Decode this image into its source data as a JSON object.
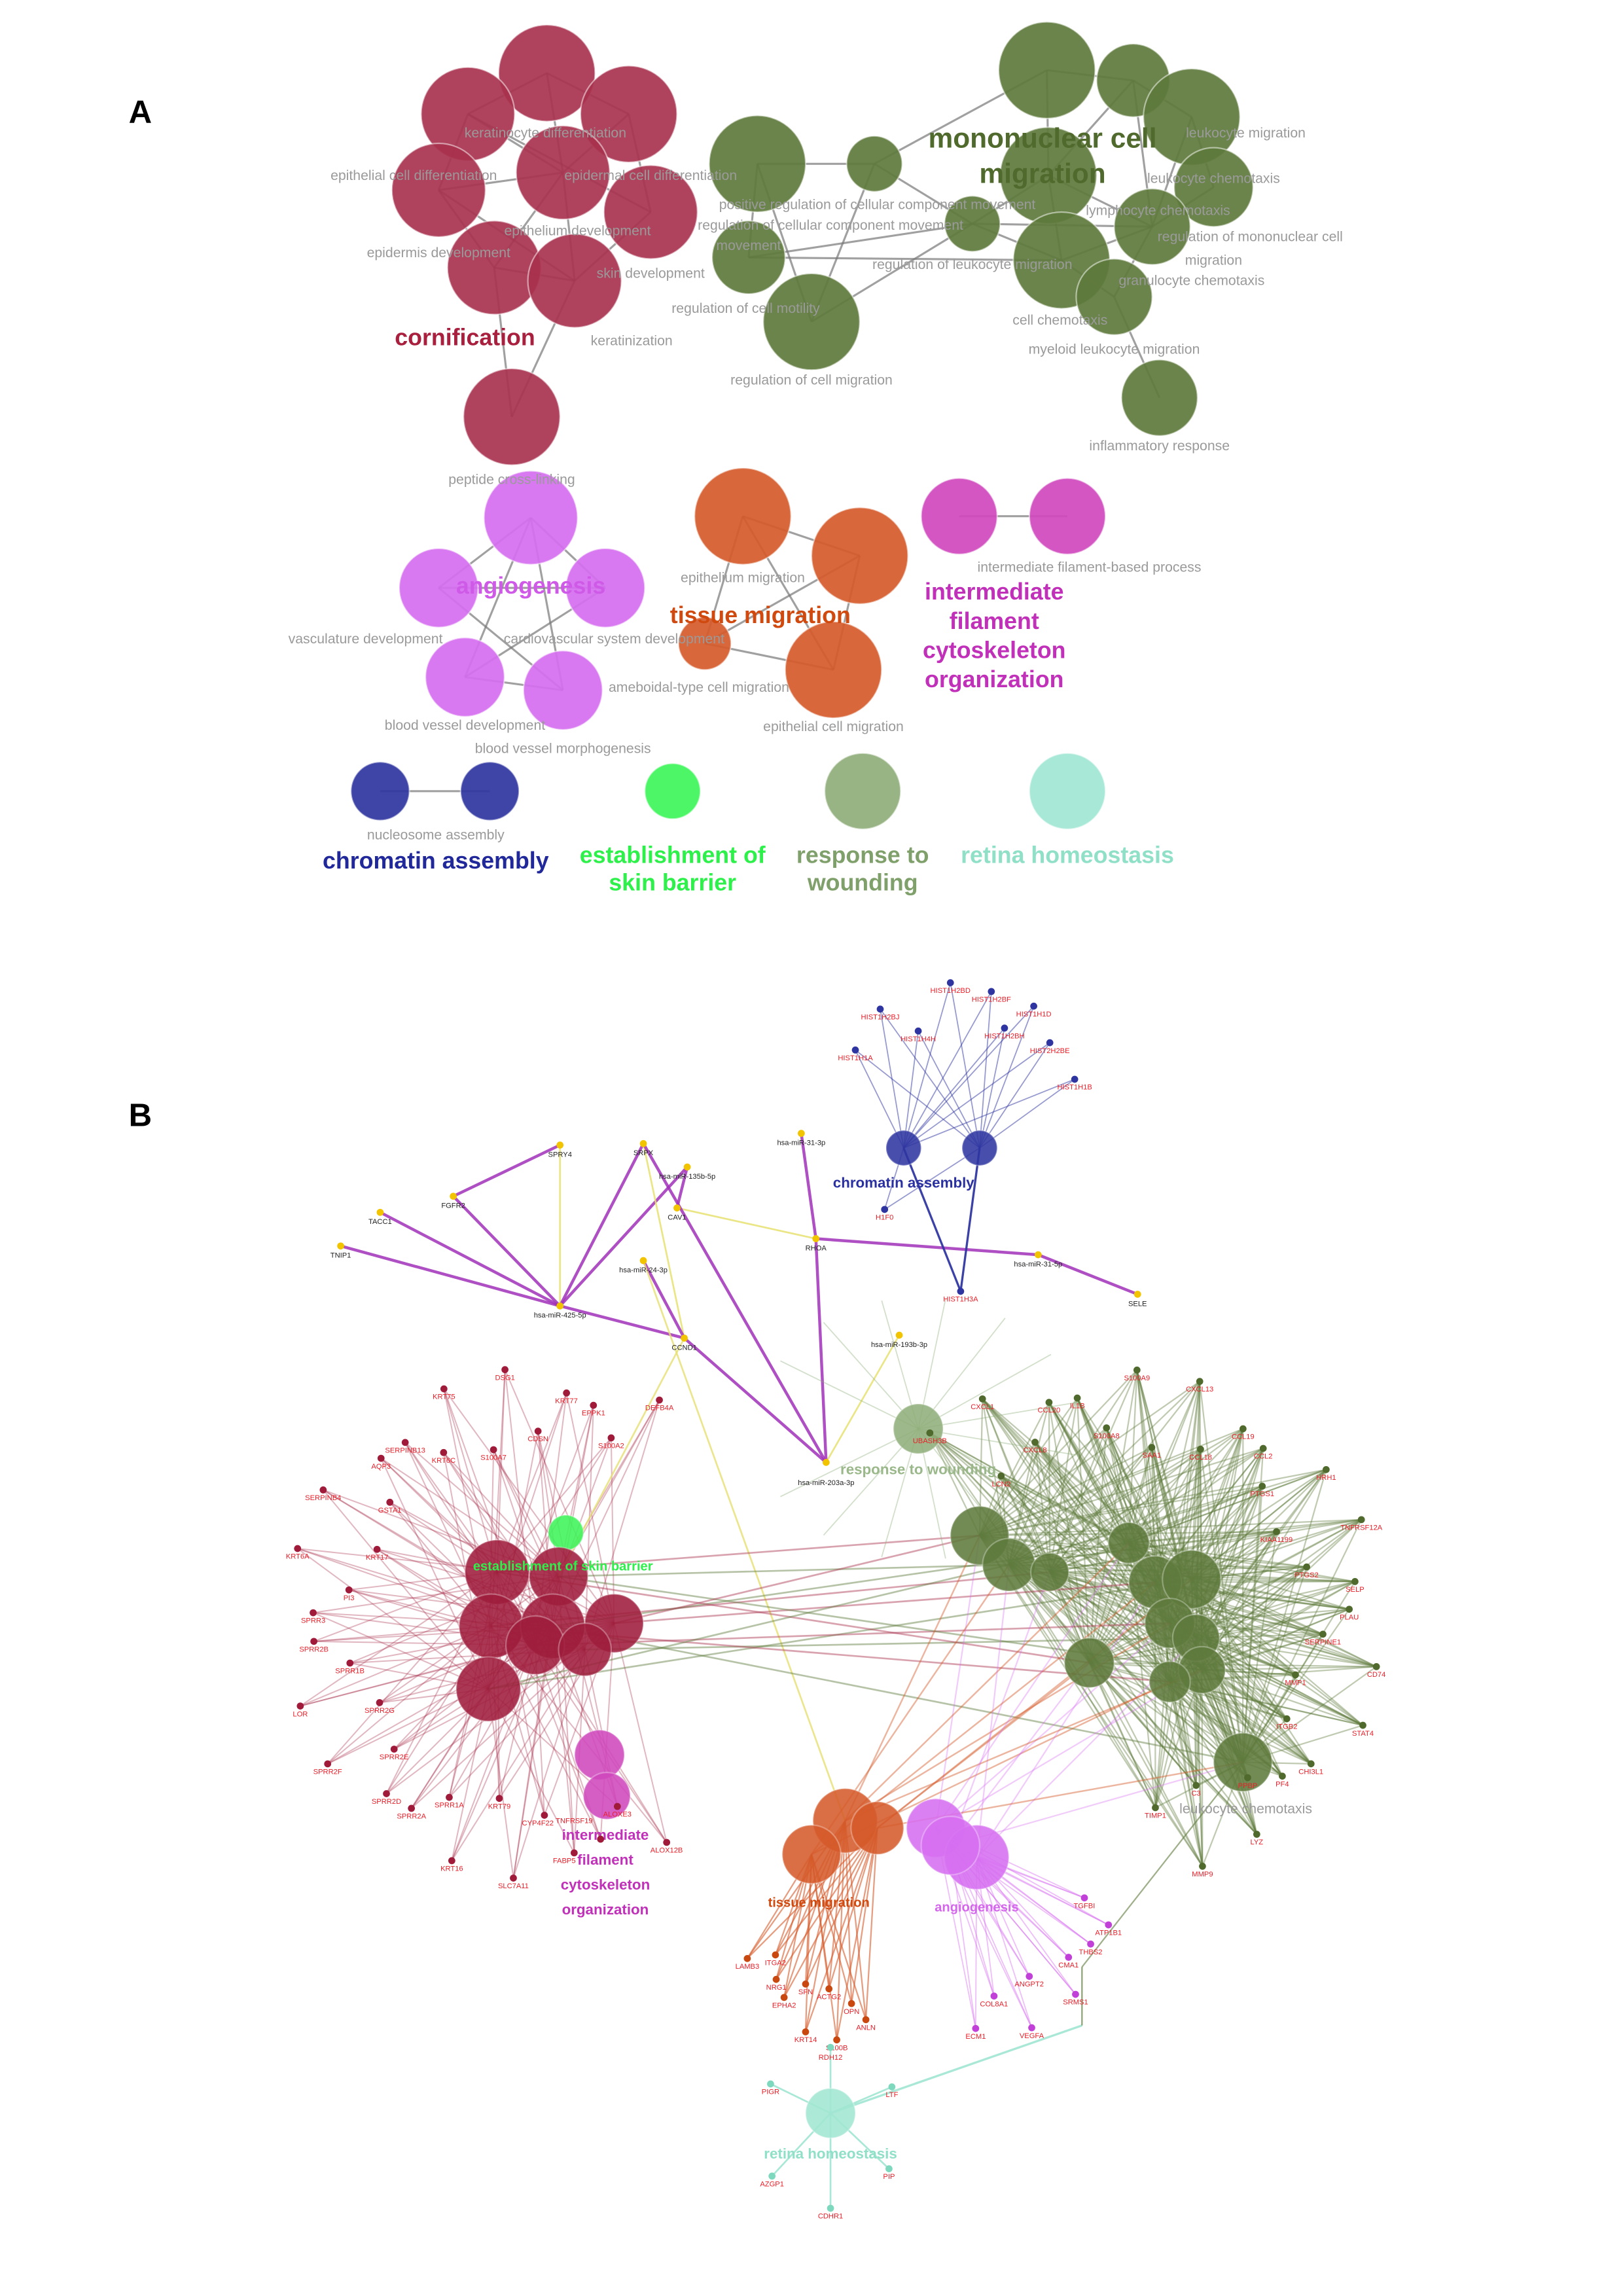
{
  "panels": {
    "a": "A",
    "b": "B"
  },
  "colors": {
    "cornification": "#a8324e",
    "mononuclear": "#5e7a3c",
    "angiogenesis": "#d66ef0",
    "tissue_migration": "#d55a2a",
    "intermediate_filament": "#cf48bd",
    "chromatin": "#2f35a0",
    "skin_barrier": "#3ef55a",
    "wounding": "#8fae7a",
    "retina": "#a0e6d2",
    "edge": "#8c8c8c",
    "gene_label": "#e8202a",
    "mirna_node": "#f2c400",
    "mirna_edge": "#a030b8"
  },
  "panel_a": {
    "clusters": [
      {
        "id": "cornification",
        "label": "cornification"
      },
      {
        "id": "mononuclear",
        "label_lines": [
          "mononuclear cell",
          "migration"
        ]
      },
      {
        "id": "angiogenesis",
        "label": "angiogenesis"
      },
      {
        "id": "tissue_migration",
        "label": "tissue migration"
      },
      {
        "id": "intermediate_filament",
        "label_lines": [
          "intermediate",
          "filament",
          "cytoskeleton",
          "organization"
        ]
      },
      {
        "id": "chromatin",
        "label": "chromatin assembly"
      },
      {
        "id": "skin_barrier",
        "label_lines": [
          "establishment of",
          "skin barrier"
        ]
      },
      {
        "id": "wounding",
        "label_lines": [
          "response to",
          "wounding"
        ]
      },
      {
        "id": "retina",
        "label": "retina homeostasis"
      }
    ],
    "terms": [
      "keratinocyte differentiation",
      "epithelial cell differentiation",
      "epidermal cell differentiation",
      "epithelium development",
      "epidermis development",
      "skin development",
      "keratinization",
      "peptide cross-linking",
      "positive regulation of cellular component movement",
      "regulation of cellular component movement",
      "movement",
      "regulation of cell motility",
      "regulation of cell migration",
      "regulation of leukocyte migration",
      "leukocyte migration",
      "leukocyte chemotaxis",
      "lymphocyte chemotaxis",
      "regulation of mononuclear cell",
      "migration",
      "granulocyte chemotaxis",
      "cell chemotaxis",
      "myeloid leukocyte migration",
      "inflammatory response",
      "vasculature development",
      "cardiovascular system development",
      "blood vessel development",
      "blood vessel morphogenesis",
      "ameboidal-type cell migration",
      "epithelium migration",
      "epithelial cell migration",
      "intermediate filament-based process",
      "nucleosome assembly"
    ]
  },
  "panel_b": {
    "cluster_labels": {
      "chromatin": "chromatin assembly",
      "wounding": "response to wounding",
      "skin_barrier": "establishment of skin barrier",
      "intermediate_filament": [
        "intermediate",
        "filament",
        "cytoskeleton",
        "organization"
      ],
      "tissue_migration": "tissue migration",
      "angiogenesis": "angiogenesis",
      "retina": "retina homeostasis",
      "leukocyte": "leukocyte chemotaxis"
    },
    "chromatin_genes": [
      "HIST1H2BD",
      "HIST1H2BF",
      "HIST1H2BJ",
      "HIST1H1D",
      "HIST1H4H",
      "HIST1H2BH",
      "HIST2H2BE",
      "HIST1H1A",
      "HIST1H1B",
      "H1F0",
      "HIST1H3A"
    ],
    "mirna_nodes": [
      "TNIP1",
      "TACC1",
      "FGFR2",
      "SPRY4",
      "SRPX",
      "hsa-miR-135b-5p",
      "hsa-miR-31-3p",
      "CAV1",
      "hsa-miR-24-3p",
      "RHOA",
      "hsa-miR-31-5p",
      "hsa-miR-425-5p",
      "CCND1",
      "SELE",
      "hsa-miR-193b-3p",
      "hsa-miR-203a-3p"
    ],
    "cornification_genes": [
      "ALOX12B",
      "ALOXE3",
      "TNFRSF19",
      "FABP5",
      "CYP4F22",
      "SLC7A11",
      "KRT79",
      "KRT16",
      "SPRR1A",
      "SPRR2A",
      "SPRR2D",
      "SPRR2E",
      "SPRR2F",
      "SPRR2G",
      "LOR",
      "SPRR1B",
      "SPRR2B",
      "SPRR3",
      "PI3",
      "KRT6A",
      "KRT17",
      "SERPINB4",
      "GSTA1",
      "AQP3",
      "SERPINB13",
      "KRT6C",
      "KRT75",
      "S100A7",
      "DSG1",
      "CDSN",
      "KRT77",
      "EPPK1",
      "S100A2",
      "DEFB4A"
    ],
    "green_genes": [
      "UBASH3B",
      "LCN2",
      "CXCL1",
      "CXCL8",
      "CCL20",
      "IL1B",
      "S100A8",
      "S100A9",
      "SAA1",
      "CXCL13",
      "CCL18",
      "CCL19",
      "CCL2",
      "PTGS1",
      "HRH1",
      "KIAA1199",
      "TNFRSF12A",
      "PTGS2",
      "SELP",
      "PLAU",
      "SERPINE1",
      "CD74",
      "MMP1",
      "STAT4",
      "ITGB2",
      "CHI3L1",
      "PF4",
      "PPBP",
      "LYZ",
      "C3",
      "MMP9",
      "TIMP1"
    ],
    "orange_genes": [
      "ANLN",
      "OPN",
      "S100B",
      "ACTG2",
      "KRT14",
      "SFN",
      "EPHA2",
      "NRG1",
      "ITGA2",
      "LAMB3"
    ],
    "magenta_genes": [
      "TGFBI",
      "ATP1B1",
      "THBS2",
      "CMA1",
      "SRMS1",
      "ANGPT2",
      "VEGFA",
      "COL8A1",
      "ECM1"
    ],
    "retina_genes": [
      "RDH12",
      "PIGR",
      "LTF",
      "AZGP1",
      "PIP",
      "CDHR1"
    ]
  }
}
